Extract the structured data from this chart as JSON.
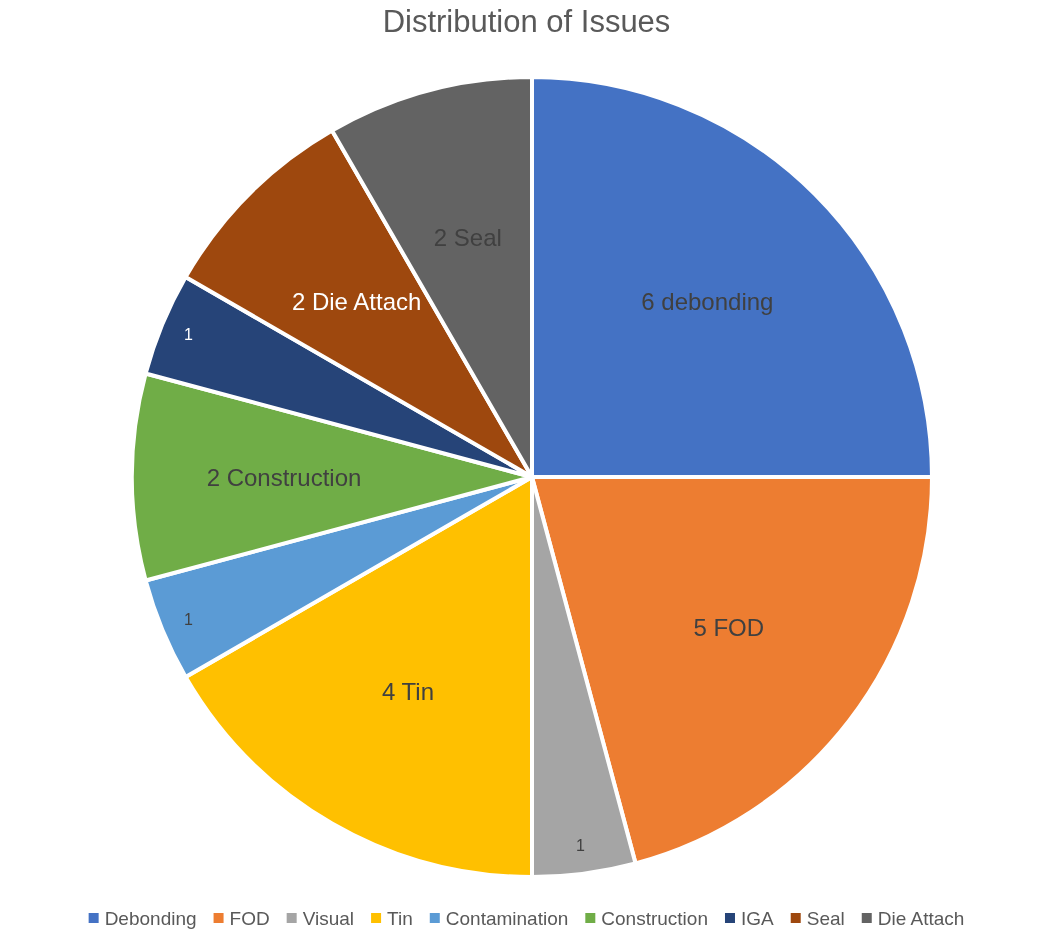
{
  "chart_data": {
    "type": "pie",
    "title": "Distribution of Issues",
    "categories": [
      "Debonding",
      "FOD",
      "Visual",
      "Tin",
      "Contamination",
      "Construction",
      "IGA",
      "Seal",
      "Die Attach"
    ],
    "values": [
      6,
      5,
      1,
      4,
      1,
      2,
      1,
      2,
      2
    ],
    "colors": [
      "#4472c4",
      "#ed7d31",
      "#a5a5a5",
      "#ffc000",
      "#5b9bd5",
      "#70ad47",
      "#264478",
      "#9e480e",
      "#636363"
    ],
    "value_labels": [
      "6 debonding",
      "5 FOD",
      "1",
      "4 Tin",
      "1",
      "2 Construction",
      "1",
      "2 Die Attach",
      "2 Seal"
    ],
    "legend": "bottom"
  }
}
